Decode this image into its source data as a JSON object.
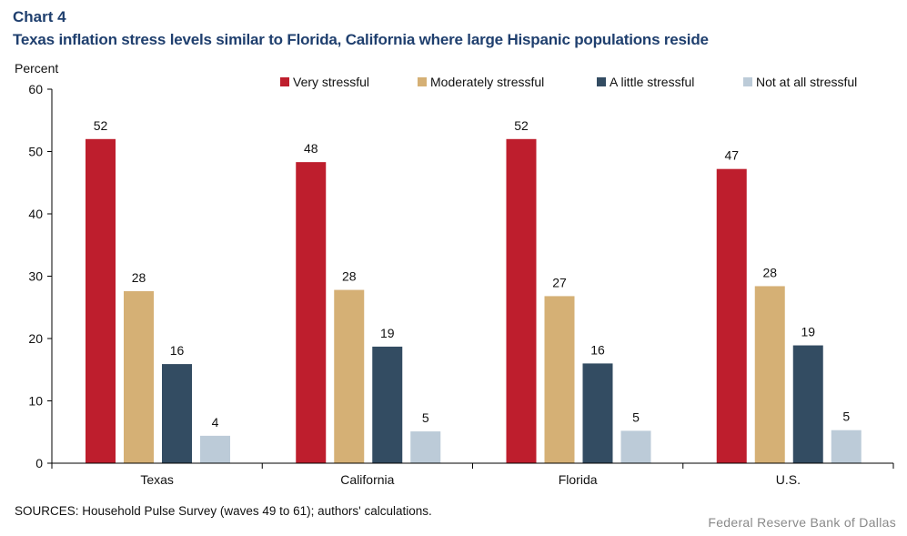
{
  "header": {
    "chart_label": "Chart 4",
    "title": "Texas inflation stress levels similar to Florida, California where large Hispanic populations reside"
  },
  "footer": {
    "source": "SOURCES: Household Pulse Survey (waves 49 to 61); authors' calculations.",
    "brand": "Federal Reserve Bank of Dallas"
  },
  "chart_data": {
    "type": "bar",
    "title": "Texas inflation stress levels similar to Florida, California where large Hispanic populations reside",
    "xlabel": "",
    "ylabel": "Percent",
    "ylim": [
      0,
      60
    ],
    "yticks": [
      0,
      10,
      20,
      30,
      40,
      50,
      60
    ],
    "grid": false,
    "legend_position": "top-right",
    "categories": [
      "Texas",
      "California",
      "Florida",
      "U.S."
    ],
    "series": [
      {
        "name": "Very stressful",
        "color": "#be1e2d",
        "values": [
          52,
          48.3,
          52,
          47.2
        ],
        "labels": [
          "52",
          "48",
          "52",
          "47"
        ]
      },
      {
        "name": "Moderately stressful",
        "color": "#d5b075",
        "values": [
          27.6,
          27.8,
          26.8,
          28.4
        ],
        "labels": [
          "28",
          "28",
          "27",
          "28"
        ]
      },
      {
        "name": "A little stressful",
        "color": "#334c62",
        "values": [
          15.9,
          18.7,
          16.0,
          18.9
        ],
        "labels": [
          "16",
          "19",
          "16",
          "19"
        ]
      },
      {
        "name": "Not at all stressful",
        "color": "#bccbd8",
        "values": [
          4.4,
          5.1,
          5.2,
          5.3
        ],
        "labels": [
          "4",
          "5",
          "5",
          "5"
        ]
      }
    ]
  }
}
